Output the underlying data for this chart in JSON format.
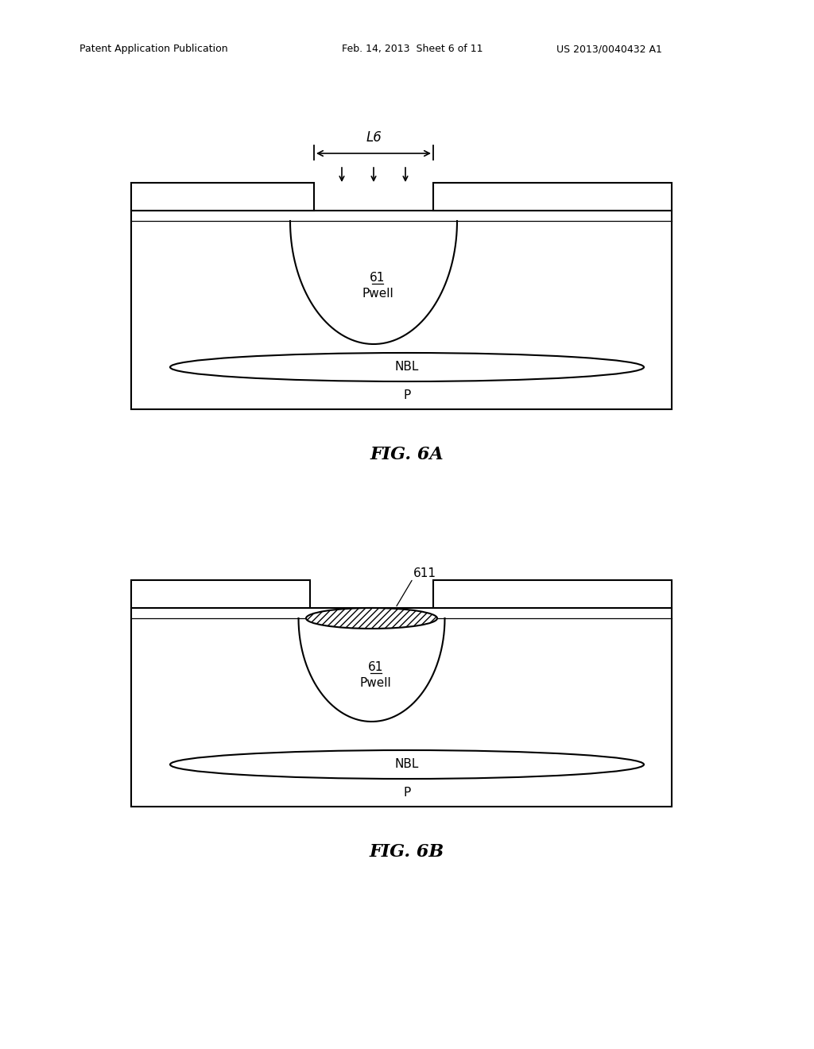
{
  "bg_color": "#ffffff",
  "header_left": "Patent Application Publication",
  "header_mid": "Feb. 14, 2013  Sheet 6 of 11",
  "header_right": "US 2013/0040432 A1",
  "fig6a_label": "FIG. 6A",
  "fig6b_label": "FIG. 6B",
  "label_61": "61",
  "label_pwell": "Pwell",
  "label_nbl": "NBL",
  "label_p": "P",
  "label_611": "611",
  "label_l6": "L6",
  "line_color": "#000000"
}
